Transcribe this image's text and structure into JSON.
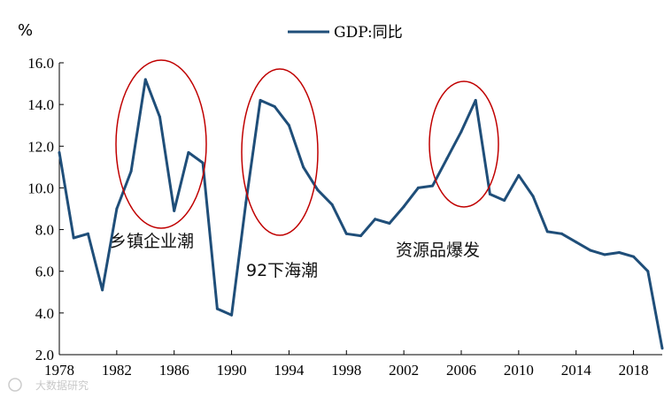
{
  "chart_data": {
    "type": "line",
    "title": "",
    "ylabel": "%",
    "xlabel": "",
    "ylim": [
      2.0,
      16.0
    ],
    "xlim": [
      1978,
      2020
    ],
    "yticks": [
      "2.0",
      "4.0",
      "6.0",
      "8.0",
      "10.0",
      "12.0",
      "14.0",
      "16.0"
    ],
    "xticks": [
      "1978",
      "1982",
      "1986",
      "1990",
      "1994",
      "1998",
      "2002",
      "2006",
      "2010",
      "2014",
      "2018"
    ],
    "legend": "GDP:同比",
    "series": [
      {
        "name": "GDP:同比",
        "color": "#1f4e79",
        "x": [
          1978,
          1979,
          1980,
          1981,
          1982,
          1983,
          1984,
          1985,
          1986,
          1987,
          1988,
          1989,
          1990,
          1991,
          1992,
          1993,
          1994,
          1995,
          1996,
          1997,
          1998,
          1999,
          2000,
          2001,
          2002,
          2003,
          2004,
          2005,
          2006,
          2007,
          2008,
          2009,
          2010,
          2011,
          2012,
          2013,
          2014,
          2015,
          2016,
          2017,
          2018,
          2019,
          2020
        ],
        "values": [
          11.7,
          7.6,
          7.8,
          5.1,
          9.0,
          10.8,
          15.2,
          13.4,
          8.9,
          11.7,
          11.2,
          4.2,
          3.9,
          9.3,
          14.2,
          13.9,
          13.0,
          11.0,
          9.9,
          9.2,
          7.8,
          7.7,
          8.5,
          8.3,
          9.1,
          10.0,
          10.1,
          11.4,
          12.7,
          14.2,
          9.7,
          9.4,
          10.6,
          9.6,
          7.9,
          7.8,
          7.4,
          7.0,
          6.8,
          6.9,
          6.7,
          6.0,
          2.3
        ]
      }
    ],
    "annotations": [
      {
        "text": "乡镇企业潮",
        "x_center": 1985.0,
        "y_center": 12.1
      },
      {
        "text": "92下海潮",
        "x_center": 1993.6,
        "y_center": 11.7
      },
      {
        "text": "资源品爆发",
        "x_center": 2006.1,
        "y_center": 12.1
      }
    ]
  },
  "watermark": "大数据研究"
}
